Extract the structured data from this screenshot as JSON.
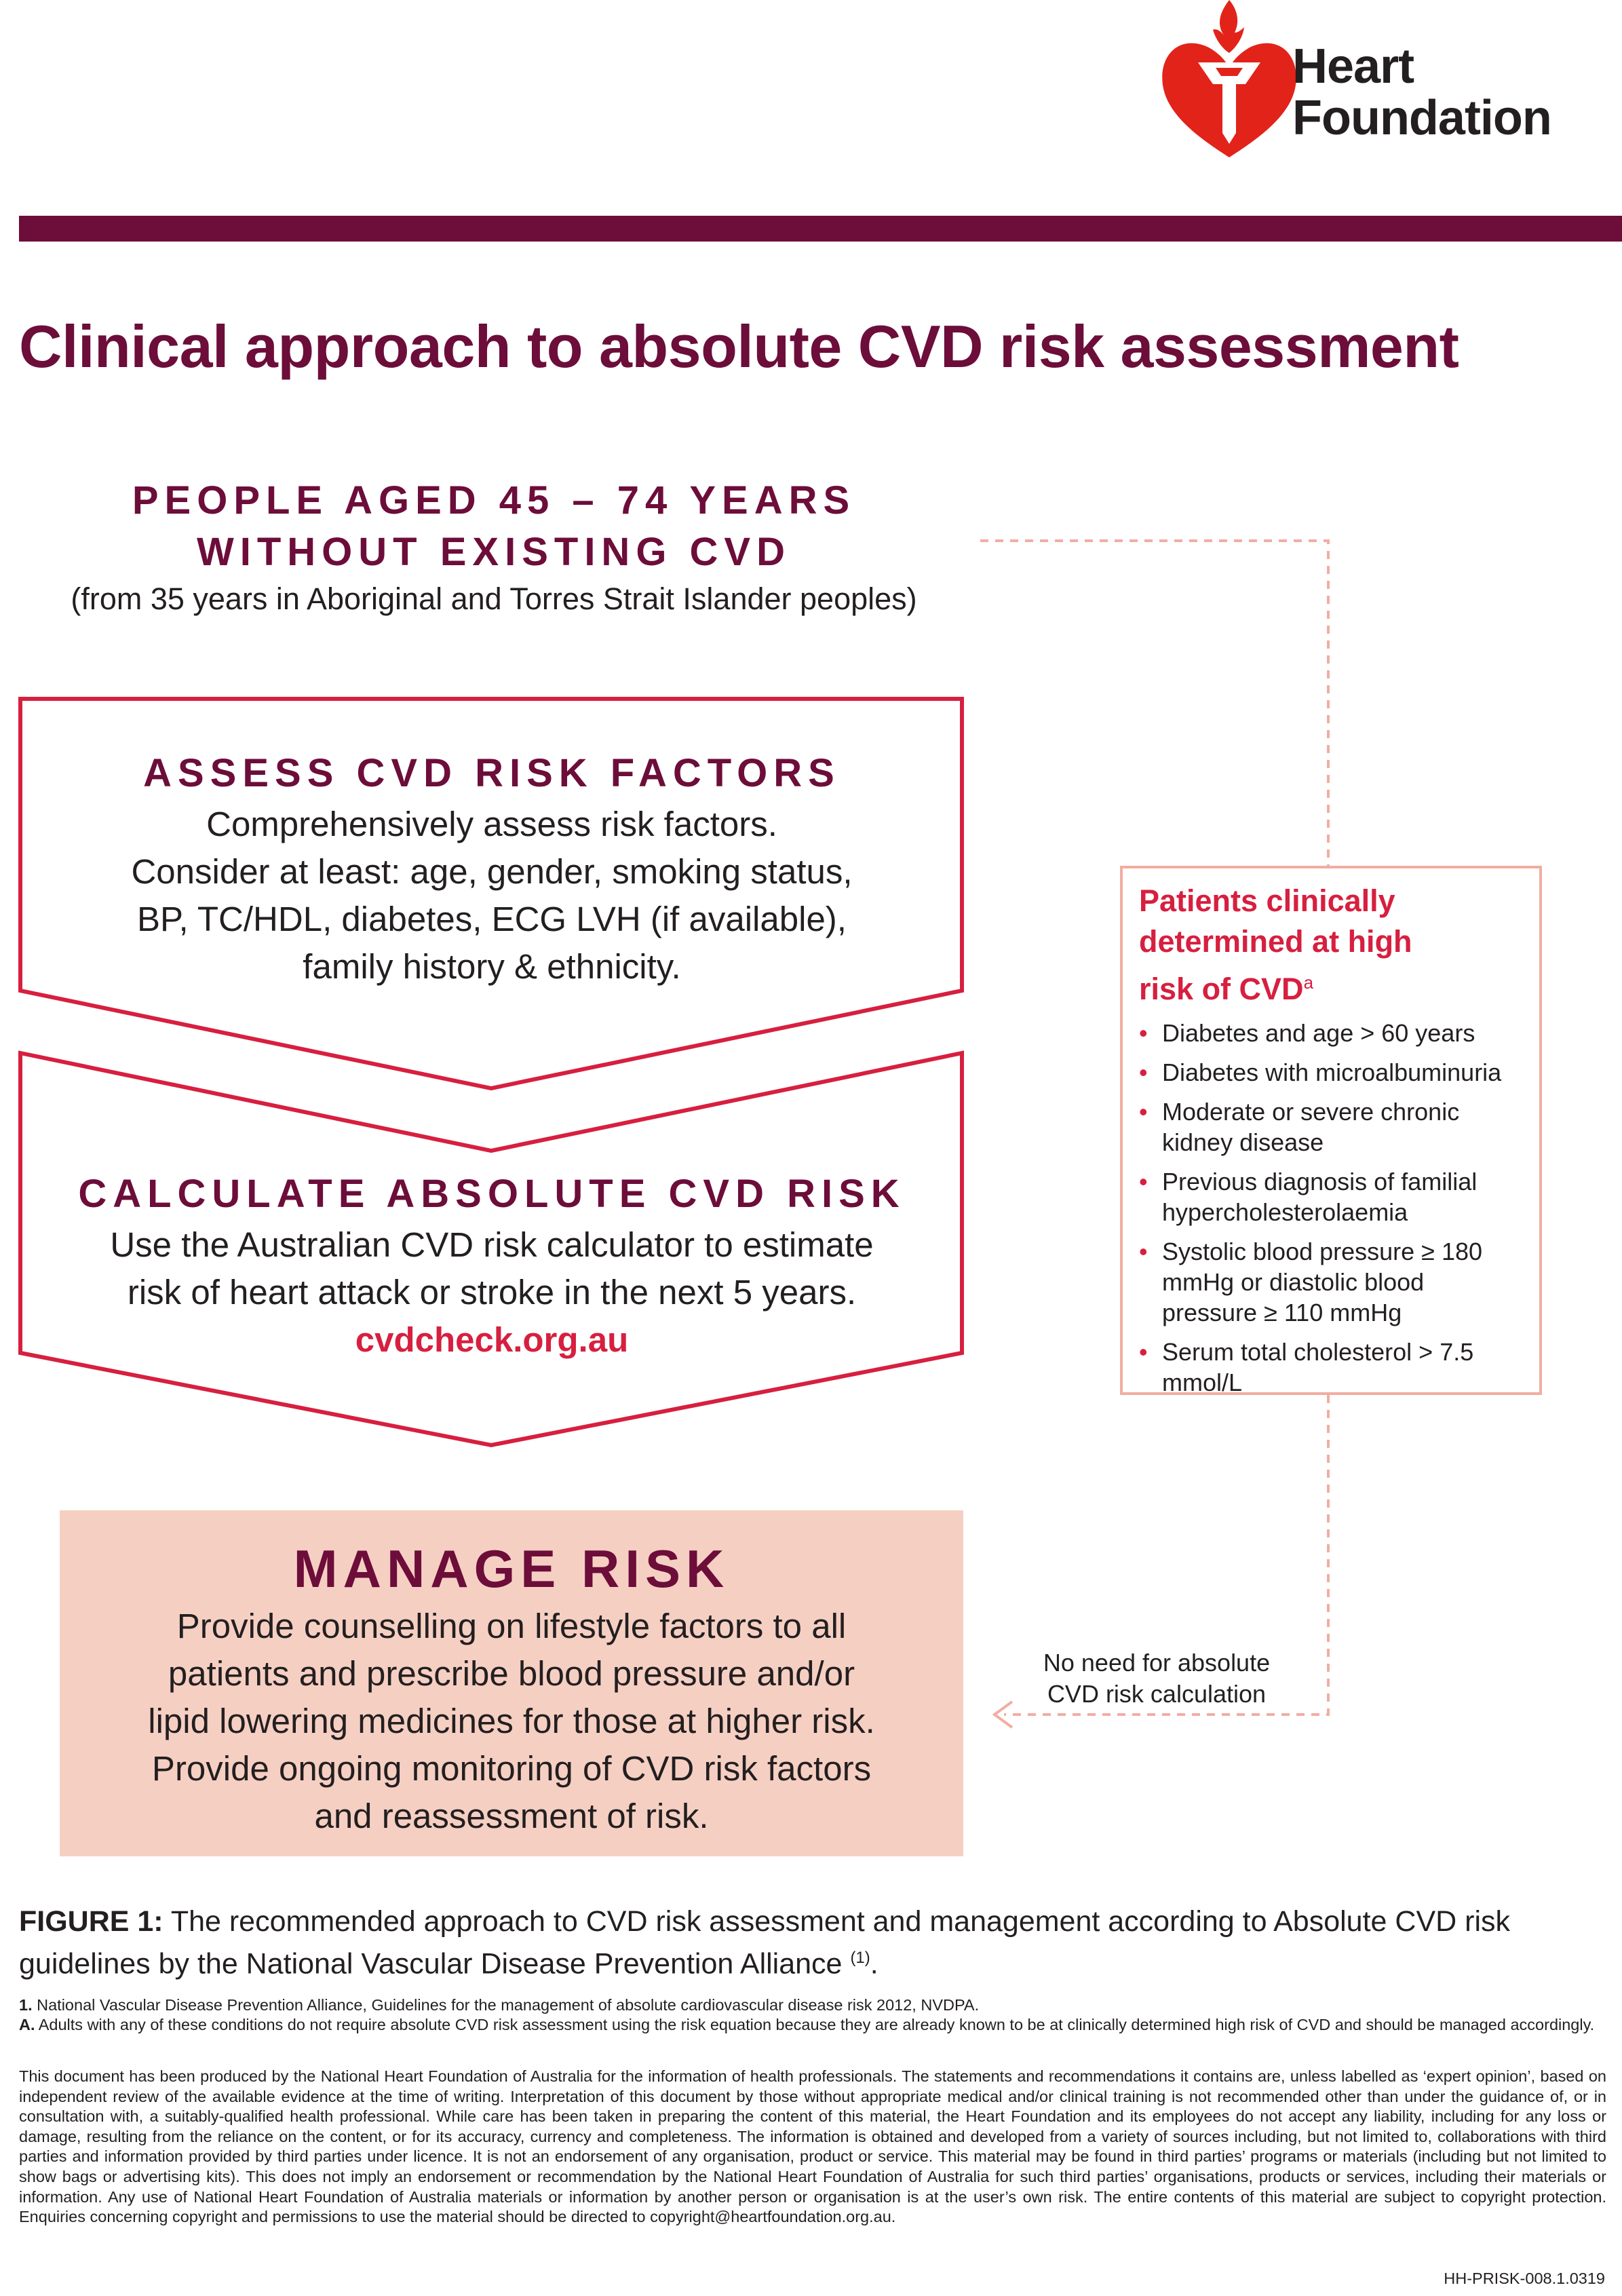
{
  "logo": {
    "line1": "Heart",
    "line2": "Foundation",
    "icon": "heart-torch-icon",
    "color": "#e2231a"
  },
  "colors": {
    "maroon": "#6c0d3a",
    "red": "#d71f3f",
    "salmon": "#f6cfc3",
    "pink_border": "#f2ada2"
  },
  "title": "Clinical approach to absolute CVD risk assessment",
  "people": {
    "line1": "PEOPLE AGED 45 – 74 YEARS",
    "line2": "WITHOUT EXISTING CVD",
    "sub": "(from 35 years in Aboriginal and Torres Strait Islander peoples)"
  },
  "assess": {
    "title": "ASSESS CVD RISK FACTORS",
    "lines": [
      "Comprehensively assess risk factors.",
      "Consider at least: age, gender, smoking status,",
      "BP, TC/HDL, diabetes, ECG LVH (if available),",
      "family history & ethnicity."
    ]
  },
  "calculate": {
    "title": "CALCULATE ABSOLUTE CVD RISK",
    "lines": [
      "Use the Australian CVD risk calculator to estimate",
      "risk of heart attack or stroke in the next 5 years."
    ],
    "link": "cvdcheck.org.au"
  },
  "manage": {
    "title": "MANAGE RISK",
    "lines": [
      "Provide counselling on lifestyle factors to all",
      "patients and prescribe blood pressure and/or",
      "lipid lowering medicines for those at higher risk.",
      "Provide ongoing monitoring of CVD risk factors",
      "and reassessment of risk."
    ]
  },
  "high_risk": {
    "title_lines": [
      "Patients clinically",
      "determined at high"
    ],
    "title_last": "risk of CVD",
    "title_sup": "a",
    "items": [
      "Diabetes and age > 60 years",
      "Diabetes with microalbuminuria",
      "Moderate or severe chronic kidney disease",
      "Previous diagnosis of familial hypercholesterolaemia",
      "Systolic blood pressure ≥ 180 mmHg or diastolic blood pressure ≥ 110 mmHg",
      "Serum total cholesterol > 7.5 mmol/L"
    ]
  },
  "no_need": {
    "line1": "No need for absolute",
    "line2": "CVD risk calculation"
  },
  "figure": {
    "label": "FIGURE 1:",
    "text": "The recommended approach to CVD risk assessment and management according to Absolute CVD risk guidelines by the National Vascular Disease Prevention Alliance",
    "ref": "(1)",
    "end": "."
  },
  "refs": [
    {
      "label": "1.",
      "text": "National Vascular Disease Prevention Alliance, Guidelines for the management of absolute cardiovascular disease risk 2012, NVDPA."
    },
    {
      "label": "A.",
      "text": "Adults with any of these conditions do not require absolute CVD risk assessment using the risk equation because they are already known to be at clinically determined high risk of CVD and should be managed accordingly."
    }
  ],
  "disclaimer": "This document has been produced by the National Heart Foundation of Australia for the information of health professionals. The statements and recommendations it contains are, unless labelled as ‘expert opinion’, based on independent review of the available evidence at the time of writing. Interpretation of this document by those without appropriate medical and/or clinical training is not recommended other than under the guidance of, or in consultation with, a suitably-qualified health professional. While care has been taken in preparing the content of this material, the Heart Foundation and its employees do not accept any liability, including for any loss or damage, resulting from the reliance on the content, or for its accuracy, currency and completeness. The information is obtained and developed from a variety of sources including, but not limited to, collaborations with third parties and information provided by third parties under licence. It is not an endorsement of any organisation, product or service. This material may be found in third parties’ programs or materials (including but not limited to show bags or advertising kits). This does not imply an endorsement or recommendation by the National Heart Foundation of Australia for such third parties’ organisations, products or services, including their materials or information. Any use of National Heart Foundation of Australia materials or information by another person or organisation is at the user’s own risk. The entire contents of this material are subject to copyright protection. Enquiries concerning copyright and permissions to use the material should be directed to copyright@heartfoundation.org.au.",
  "doc_code": "HH-PRISK-008.1.0319"
}
